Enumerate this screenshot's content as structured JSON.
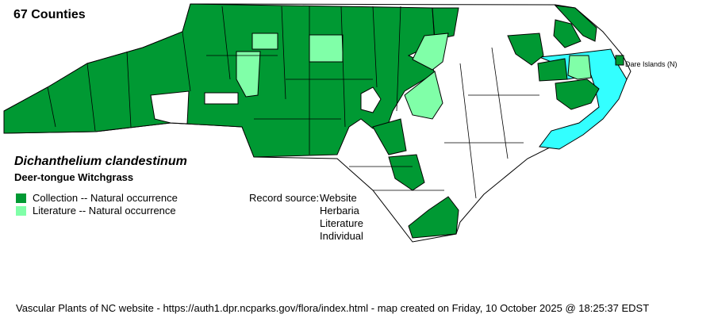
{
  "header": {
    "county_count": "67 Counties"
  },
  "species": {
    "scientific_name": "Dichanthelium clandestinum",
    "common_name": "Deer-tongue Witchgrass"
  },
  "legend": {
    "items": [
      {
        "label": "Collection -- Natural occurrence",
        "color": "#009933"
      },
      {
        "label": "Literature -- Natural occurrence",
        "color": "#80FFA8"
      }
    ]
  },
  "record_source": {
    "label": "Record source:",
    "sources": [
      "Website",
      "Herbaria",
      "Literature",
      "Individual"
    ]
  },
  "map": {
    "water_color": "#33FFFF",
    "absent_color": "#FFFFFF",
    "annotation": "Dare Islands (N)"
  },
  "footer": "Vascular Plants of NC website - https://auth1.dpr.ncparks.gov/flora/index.html - map created on Friday, 10 October 2025 @ 18:25:37 EDST"
}
